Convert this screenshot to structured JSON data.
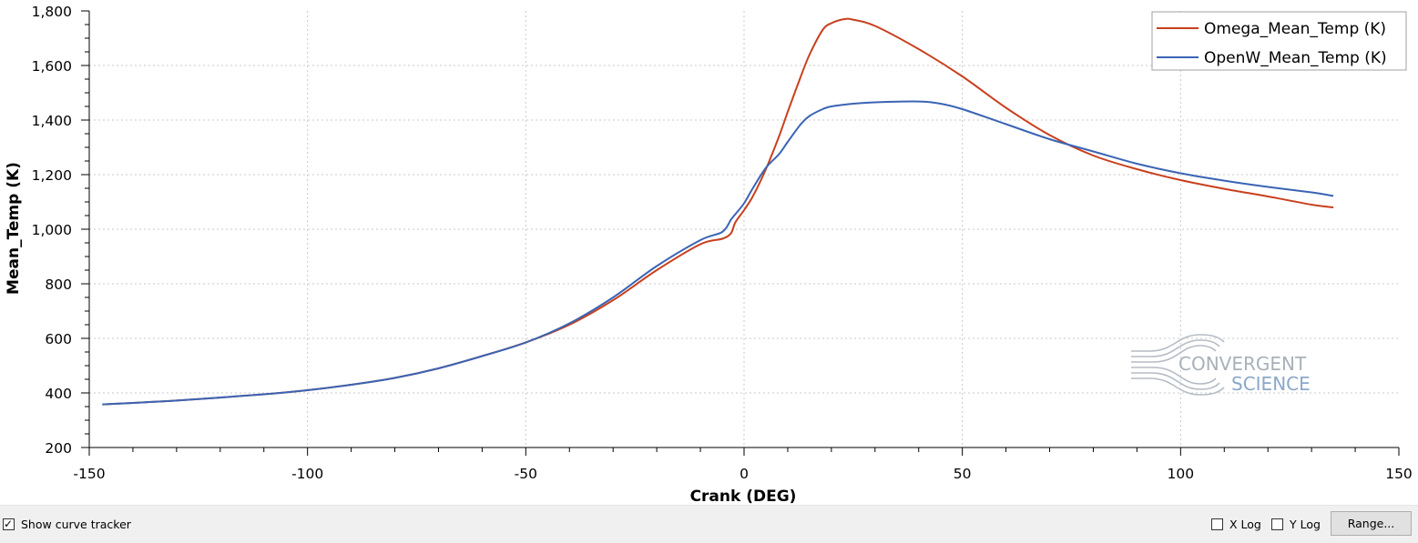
{
  "chart_data": {
    "type": "line",
    "title": "",
    "xlabel": "Crank (DEG)",
    "ylabel": "Mean_Temp (K)",
    "xlim": [
      -150,
      150
    ],
    "ylim": [
      200,
      1800
    ],
    "x_ticks": [
      -150,
      -100,
      -50,
      0,
      50,
      100,
      150
    ],
    "x_tick_labels": [
      "-150",
      "-100",
      "-50",
      "0",
      "50",
      "100",
      "150"
    ],
    "y_ticks": [
      200,
      400,
      600,
      800,
      1000,
      1200,
      1400,
      1600,
      1800
    ],
    "y_tick_labels": [
      "200",
      "400",
      "600",
      "800",
      "1,000",
      "1,200",
      "1,400",
      "1,600",
      "1,800"
    ],
    "grid": true,
    "legend_position": "top-right",
    "series": [
      {
        "name": "Omega_Mean_Temp (K)",
        "color": "#c8401e",
        "x": [
          -147,
          -130,
          -110,
          -100,
          -90,
          -80,
          -70,
          -60,
          -50,
          -40,
          -30,
          -20,
          -10,
          -5,
          -3,
          -2,
          0,
          2,
          5,
          8,
          10,
          13,
          15,
          18,
          20,
          23,
          25,
          30,
          40,
          50,
          60,
          70,
          80,
          90,
          100,
          110,
          120,
          130,
          135
        ],
        "y": [
          358,
          372,
          395,
          410,
          430,
          455,
          490,
          535,
          585,
          650,
          740,
          850,
          945,
          965,
          985,
          1025,
          1070,
          1120,
          1220,
          1340,
          1430,
          1560,
          1640,
          1730,
          1755,
          1770,
          1768,
          1745,
          1660,
          1560,
          1445,
          1345,
          1270,
          1220,
          1180,
          1148,
          1120,
          1090,
          1080
        ]
      },
      {
        "name": "OpenW_Mean_Temp (K)",
        "color": "#3a64b4",
        "x": [
          -147,
          -130,
          -110,
          -100,
          -90,
          -80,
          -70,
          -60,
          -50,
          -40,
          -30,
          -20,
          -10,
          -5,
          -3,
          -2,
          0,
          2,
          5,
          8,
          10,
          13,
          15,
          18,
          20,
          25,
          30,
          40,
          45,
          50,
          60,
          70,
          80,
          90,
          100,
          110,
          120,
          130,
          135
        ],
        "y": [
          358,
          372,
          395,
          410,
          430,
          455,
          490,
          535,
          585,
          655,
          750,
          865,
          960,
          990,
          1035,
          1055,
          1095,
          1150,
          1225,
          1275,
          1320,
          1385,
          1415,
          1440,
          1450,
          1460,
          1465,
          1468,
          1460,
          1440,
          1385,
          1330,
          1285,
          1240,
          1205,
          1178,
          1155,
          1135,
          1122
        ]
      }
    ]
  },
  "watermark": {
    "line1": "CONVERGENT",
    "line2": "SCIENCE"
  },
  "bottom_bar": {
    "curve_tracker_label": "Show curve tracker",
    "x_log_label": "X Log",
    "y_log_label": "Y Log",
    "range_button_label": "Range..."
  }
}
